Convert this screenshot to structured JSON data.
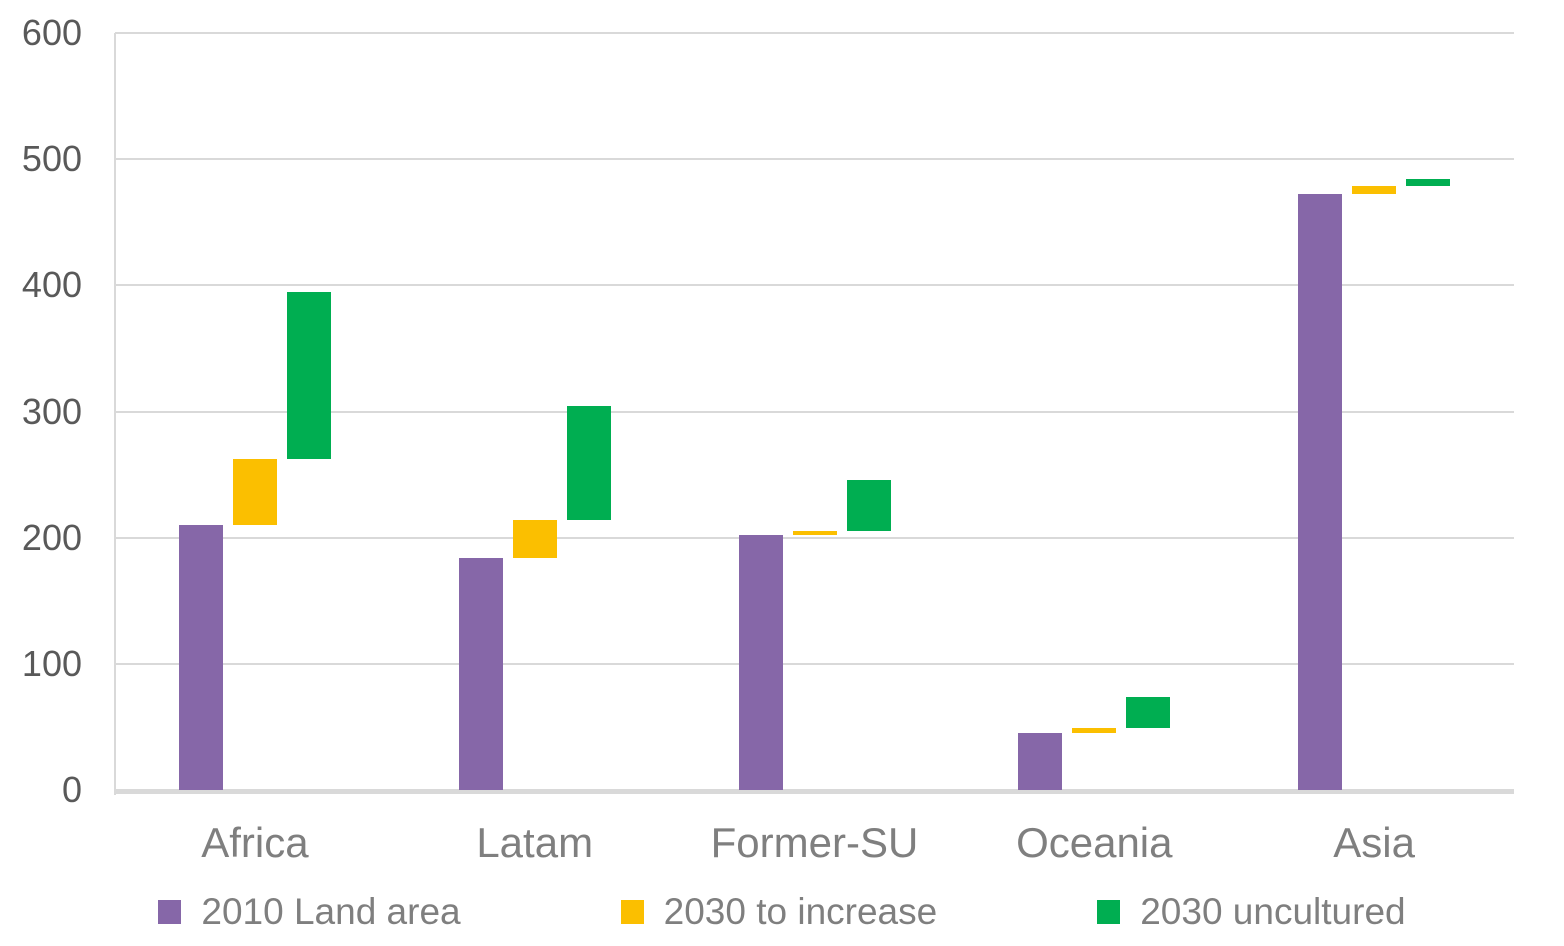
{
  "chart_data": {
    "type": "bar",
    "subtype": "waterfall-stepped",
    "title": "",
    "xlabel": "",
    "ylabel": "",
    "categories": [
      "Africa",
      "Latam",
      "Former-SU",
      "Oceania",
      "Asia"
    ],
    "series": [
      {
        "name": "2010 Land area",
        "color": "#8667A8",
        "segments": [
          [
            0,
            210
          ],
          [
            0,
            184
          ],
          [
            0,
            202
          ],
          [
            0,
            45
          ],
          [
            0,
            472
          ]
        ]
      },
      {
        "name": "2030 to increase",
        "color": "#FBBF00",
        "segments": [
          [
            210,
            262
          ],
          [
            184,
            214
          ],
          [
            202,
            205
          ],
          [
            45,
            49
          ],
          [
            472,
            479
          ]
        ]
      },
      {
        "name": "2030 uncultured",
        "color": "#00AE51",
        "segments": [
          [
            262,
            395
          ],
          [
            214,
            304
          ],
          [
            205,
            246
          ],
          [
            49,
            74
          ],
          [
            479,
            484
          ]
        ]
      }
    ],
    "ylim": [
      0,
      600
    ],
    "yticks": [
      0,
      100,
      200,
      300,
      400,
      500,
      600
    ],
    "ytick_labels": [
      "0",
      "100",
      "200",
      "300",
      "400",
      "500",
      "600"
    ],
    "grid": true,
    "legend_position": "bottom",
    "colors": {
      "gridline": "#D9D9D9",
      "y_tick_text": "#595959",
      "x_tick_text": "#7F7F7F",
      "legend_text": "#7F7F7F",
      "background": "#FFFFFF"
    }
  }
}
